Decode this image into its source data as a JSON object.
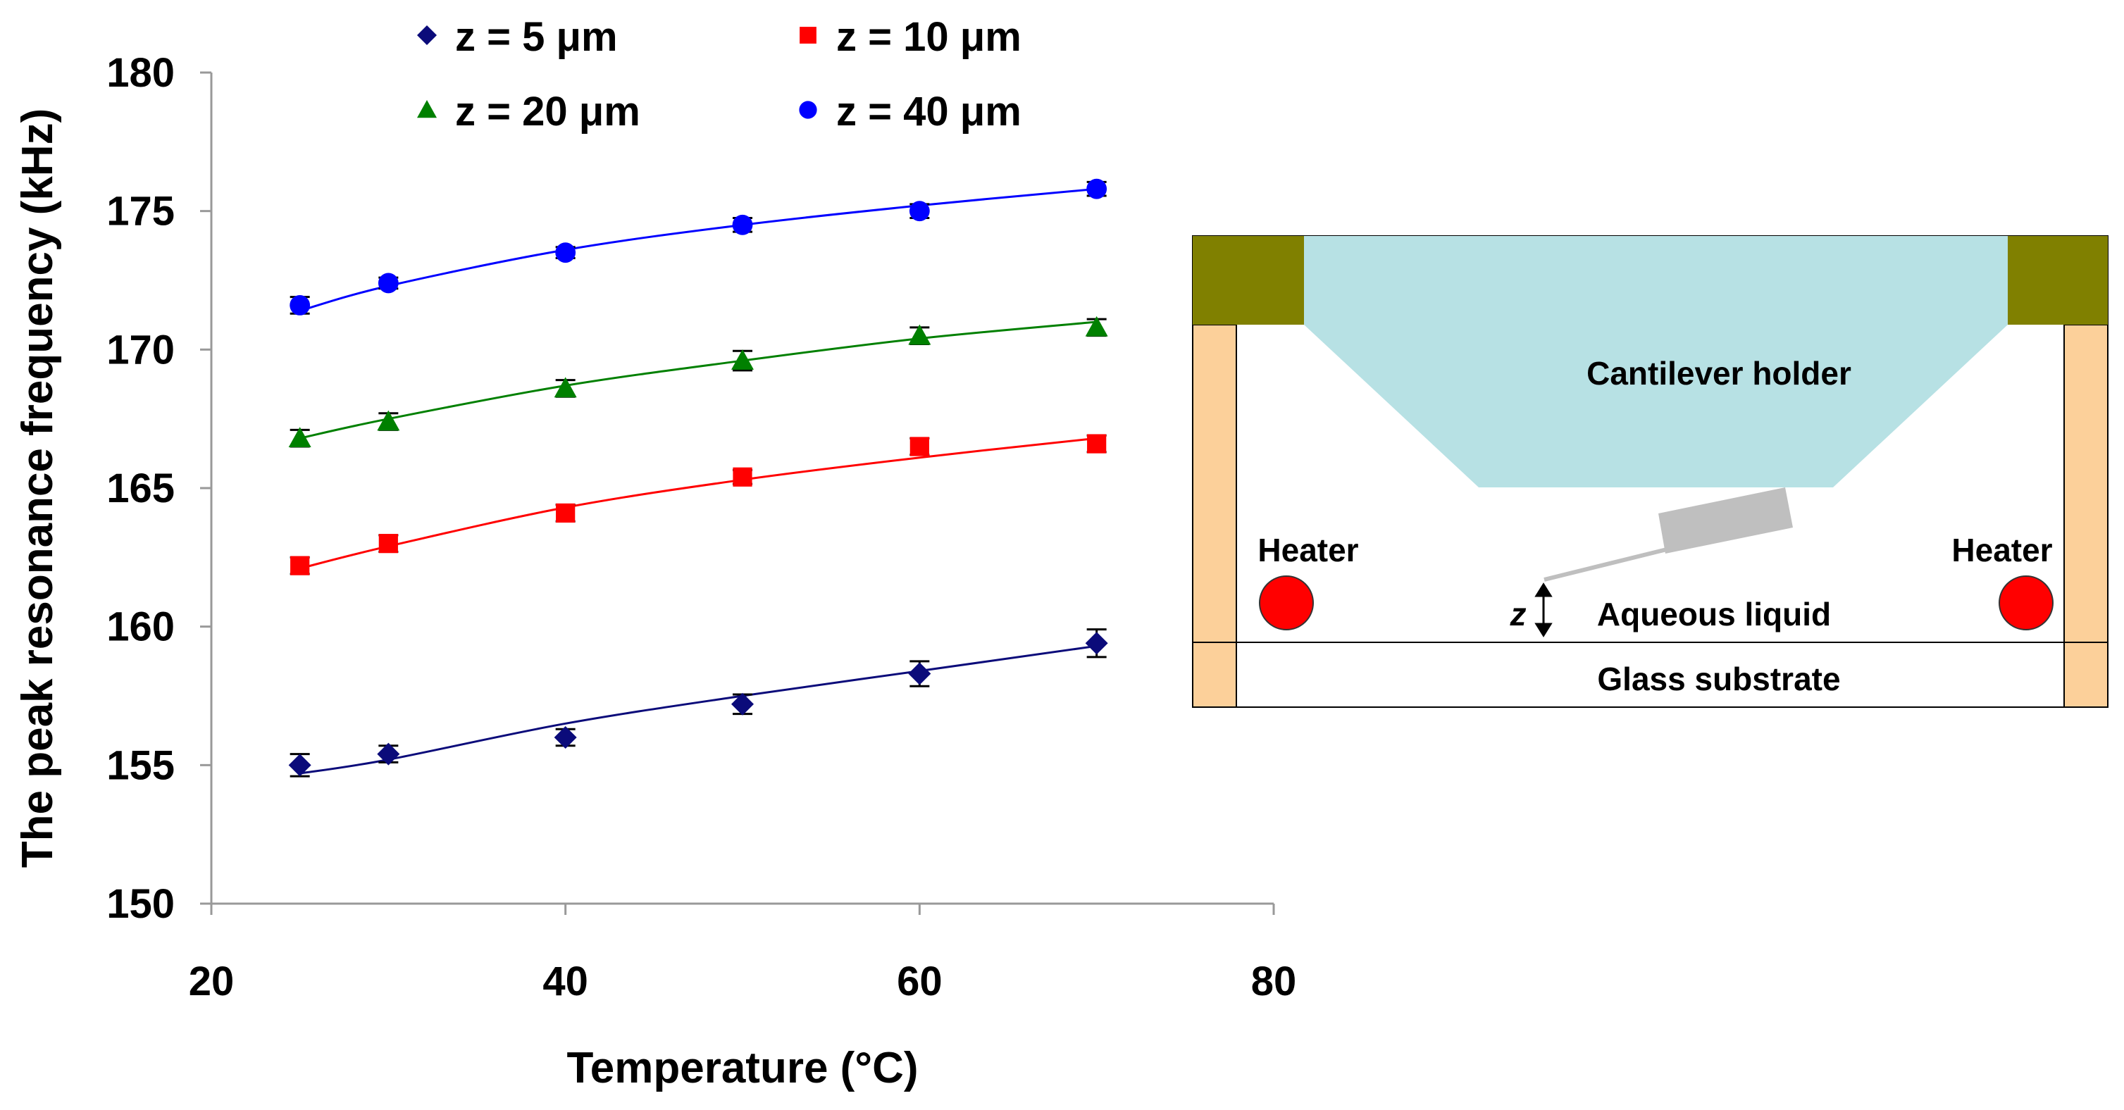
{
  "chart_data": {
    "type": "scatter",
    "xlabel": "Temperature (°C)",
    "ylabel": "The peak resonance frequency (kHz)",
    "xlim": [
      20,
      80
    ],
    "ylim": [
      150,
      180
    ],
    "xticks": [
      "20",
      "40",
      "60",
      "80"
    ],
    "yticks": [
      "150",
      "155",
      "160",
      "165",
      "170",
      "175",
      "180"
    ],
    "grid": false,
    "legend_position": "top",
    "series": [
      {
        "name": "z = 5 μm",
        "marker": "diamond",
        "color": "#0b0b7a",
        "x": [
          25,
          30,
          40,
          50,
          60,
          70
        ],
        "values": [
          155.0,
          155.4,
          156.0,
          157.2,
          158.3,
          159.4
        ],
        "error": [
          0.4,
          0.3,
          0.3,
          0.35,
          0.45,
          0.5
        ],
        "fit": [
          154.7,
          155.2,
          156.5,
          157.5,
          158.4,
          159.3
        ]
      },
      {
        "name": "z = 10 μm",
        "marker": "square",
        "color": "#ff0000",
        "x": [
          25,
          30,
          40,
          50,
          60,
          70
        ],
        "values": [
          162.2,
          163.0,
          164.1,
          165.4,
          166.5,
          166.6
        ],
        "error": [
          0.3,
          0.3,
          0.3,
          0.25,
          0.3,
          0.3
        ],
        "fit": [
          162.1,
          162.9,
          164.3,
          165.3,
          166.1,
          166.8
        ]
      },
      {
        "name": "z = 20 μm",
        "marker": "triangle",
        "color": "#008000",
        "x": [
          25,
          30,
          40,
          50,
          60,
          70
        ],
        "values": [
          166.8,
          167.4,
          168.6,
          169.6,
          170.5,
          170.8
        ],
        "error": [
          0.3,
          0.3,
          0.3,
          0.35,
          0.3,
          0.3
        ],
        "fit": [
          166.8,
          167.5,
          168.7,
          169.6,
          170.4,
          171.0
        ]
      },
      {
        "name": "z = 40 μm",
        "marker": "circle",
        "color": "#0000ff",
        "x": [
          25,
          30,
          40,
          50,
          60,
          70
        ],
        "values": [
          171.6,
          172.4,
          173.5,
          174.5,
          175.0,
          175.8
        ],
        "error": [
          0.3,
          0.2,
          0.2,
          0.25,
          0.25,
          0.25
        ],
        "fit": [
          171.4,
          172.3,
          173.6,
          174.5,
          175.2,
          175.8
        ]
      }
    ]
  },
  "diagram": {
    "holder_label": "Cantilever holder",
    "heater_left_label": "Heater",
    "heater_right_label": "Heater",
    "z_label": "z",
    "liquid_label": "Aqueous liquid",
    "substrate_label": "Glass substrate",
    "colors": {
      "clamp": "#808000",
      "holder": "#b7e1e4",
      "wall": "#fcd09a",
      "heater": "#ff0000",
      "cantilever": "#bfbfbf"
    }
  }
}
